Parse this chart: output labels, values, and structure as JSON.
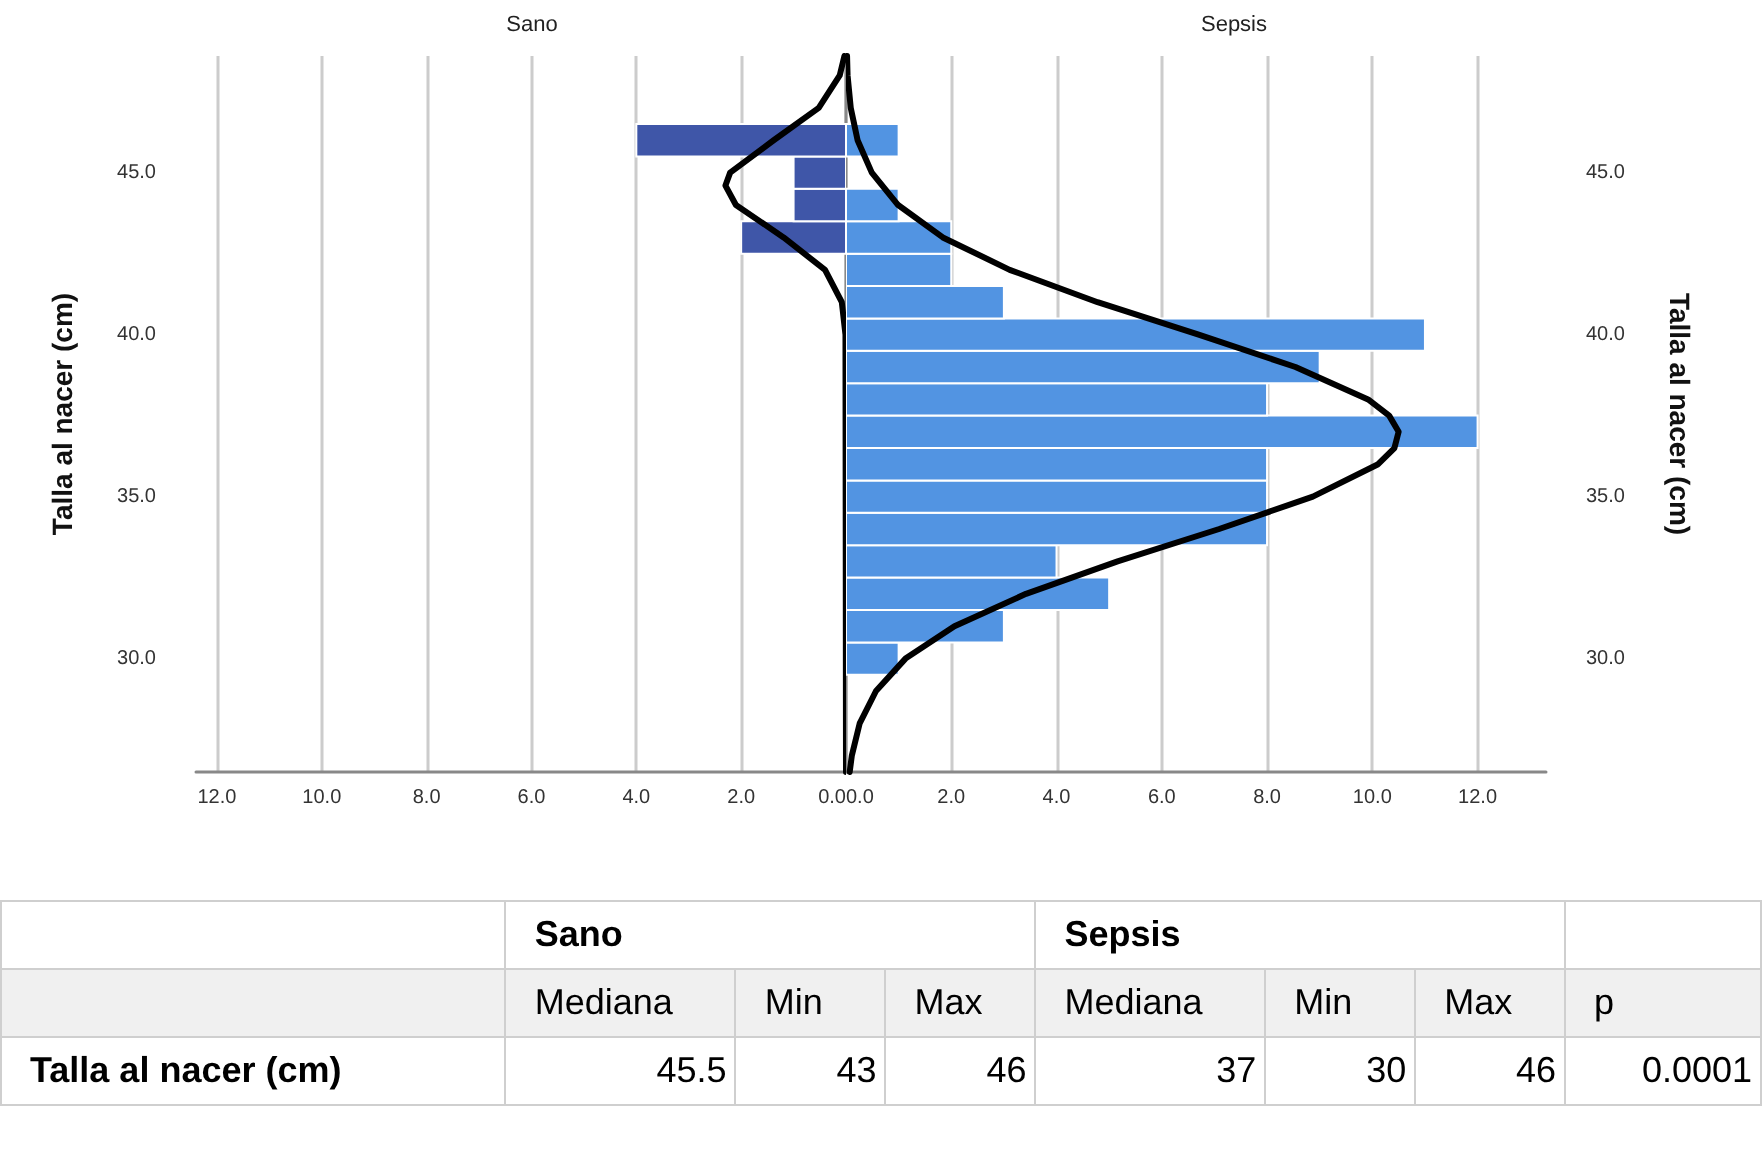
{
  "chart_data": [
    {
      "type": "histogram",
      "orientation": "horizontal",
      "title": "Sano",
      "ylabel": "Talla al nacer (cm)",
      "grid": "x",
      "xlim": [
        12.4,
        0
      ],
      "xticks": [
        {
          "value": 0,
          "label": "0.0"
        },
        {
          "value": 2,
          "label": "2.0"
        },
        {
          "value": 4,
          "label": "4.0"
        },
        {
          "value": 6,
          "label": "6.0"
        },
        {
          "value": 8,
          "label": "8.0"
        },
        {
          "value": 10,
          "label": "10.0"
        },
        {
          "value": 12,
          "label": "12.0"
        }
      ],
      "ylim": [
        26.5,
        48.6
      ],
      "yticks": [
        {
          "value": 30,
          "label": "30.0"
        },
        {
          "value": 35,
          "label": "35.0"
        },
        {
          "value": 40,
          "label": "40.0"
        },
        {
          "value": 45,
          "label": "45.0"
        }
      ],
      "series": [
        {
          "type": "histogram",
          "color": "#3f56a8",
          "bins": [
            42.5,
            43.5,
            44.5,
            45.5,
            46.5
          ],
          "values": [
            2,
            1,
            1,
            4
          ]
        },
        {
          "type": "line",
          "color": "#000000",
          "x": [
            26.5,
            40,
            41,
            42,
            43,
            44,
            44.6,
            45,
            46,
            47,
            48,
            48.6
          ],
          "values": [
            0,
            0.01,
            0.08,
            0.4,
            1.19,
            2.1,
            2.3,
            2.21,
            1.38,
            0.52,
            0.12,
            0.03
          ]
        }
      ]
    },
    {
      "type": "histogram",
      "orientation": "horizontal",
      "title": "Sepsis",
      "ylabel": "Talla al nacer (cm)",
      "grid": "x",
      "xlim": [
        0,
        13.3
      ],
      "xticks": [
        {
          "value": 0,
          "label": "0.0"
        },
        {
          "value": 2,
          "label": "2.0"
        },
        {
          "value": 4,
          "label": "4.0"
        },
        {
          "value": 6,
          "label": "6.0"
        },
        {
          "value": 8,
          "label": "8.0"
        },
        {
          "value": 10,
          "label": "10.0"
        },
        {
          "value": 12,
          "label": "12.0"
        }
      ],
      "ylim": [
        26.5,
        48.6
      ],
      "yticks": [
        {
          "value": 30,
          "label": "30.0"
        },
        {
          "value": 35,
          "label": "35.0"
        },
        {
          "value": 40,
          "label": "40.0"
        },
        {
          "value": 45,
          "label": "45.0"
        }
      ],
      "series": [
        {
          "type": "histogram",
          "color": "#5294e2",
          "bins": [
            29.5,
            30.5,
            31.5,
            32.5,
            33.5,
            34.5,
            35.5,
            36.5,
            37.5,
            38.5,
            39.5,
            40.5,
            41.5,
            42.5,
            43.5,
            44.5,
            45.5,
            46.5
          ],
          "values": [
            1,
            3,
            5,
            4,
            8,
            8,
            8,
            12,
            8,
            9,
            11,
            3,
            2,
            2,
            1,
            0,
            1
          ]
        },
        {
          "type": "line",
          "color": "#000000",
          "x": [
            26.5,
            27,
            28,
            29,
            30,
            31,
            32,
            33,
            34,
            35,
            36,
            36.5,
            37,
            37.5,
            38,
            39,
            40,
            41,
            42,
            43,
            44,
            45,
            46,
            47,
            48,
            48.6
          ],
          "values": [
            0.07,
            0.11,
            0.26,
            0.57,
            1.13,
            2.06,
            3.42,
            5.16,
            7.09,
            8.87,
            10.11,
            10.42,
            10.5,
            10.32,
            9.92,
            8.54,
            6.7,
            4.78,
            3.11,
            1.84,
            0.99,
            0.49,
            0.22,
            0.09,
            0.03,
            0.02
          ]
        }
      ]
    },
    {
      "type": "other",
      "annotations": [
        "Sano",
        "Sepsis",
        "Mediana",
        "Min",
        "Max",
        "Mediana",
        "Min",
        "Max",
        "p",
        "Talla al nacer (cm)",
        "45.5",
        "43",
        "46",
        "37",
        "30",
        "46",
        "0.0001"
      ]
    }
  ]
}
